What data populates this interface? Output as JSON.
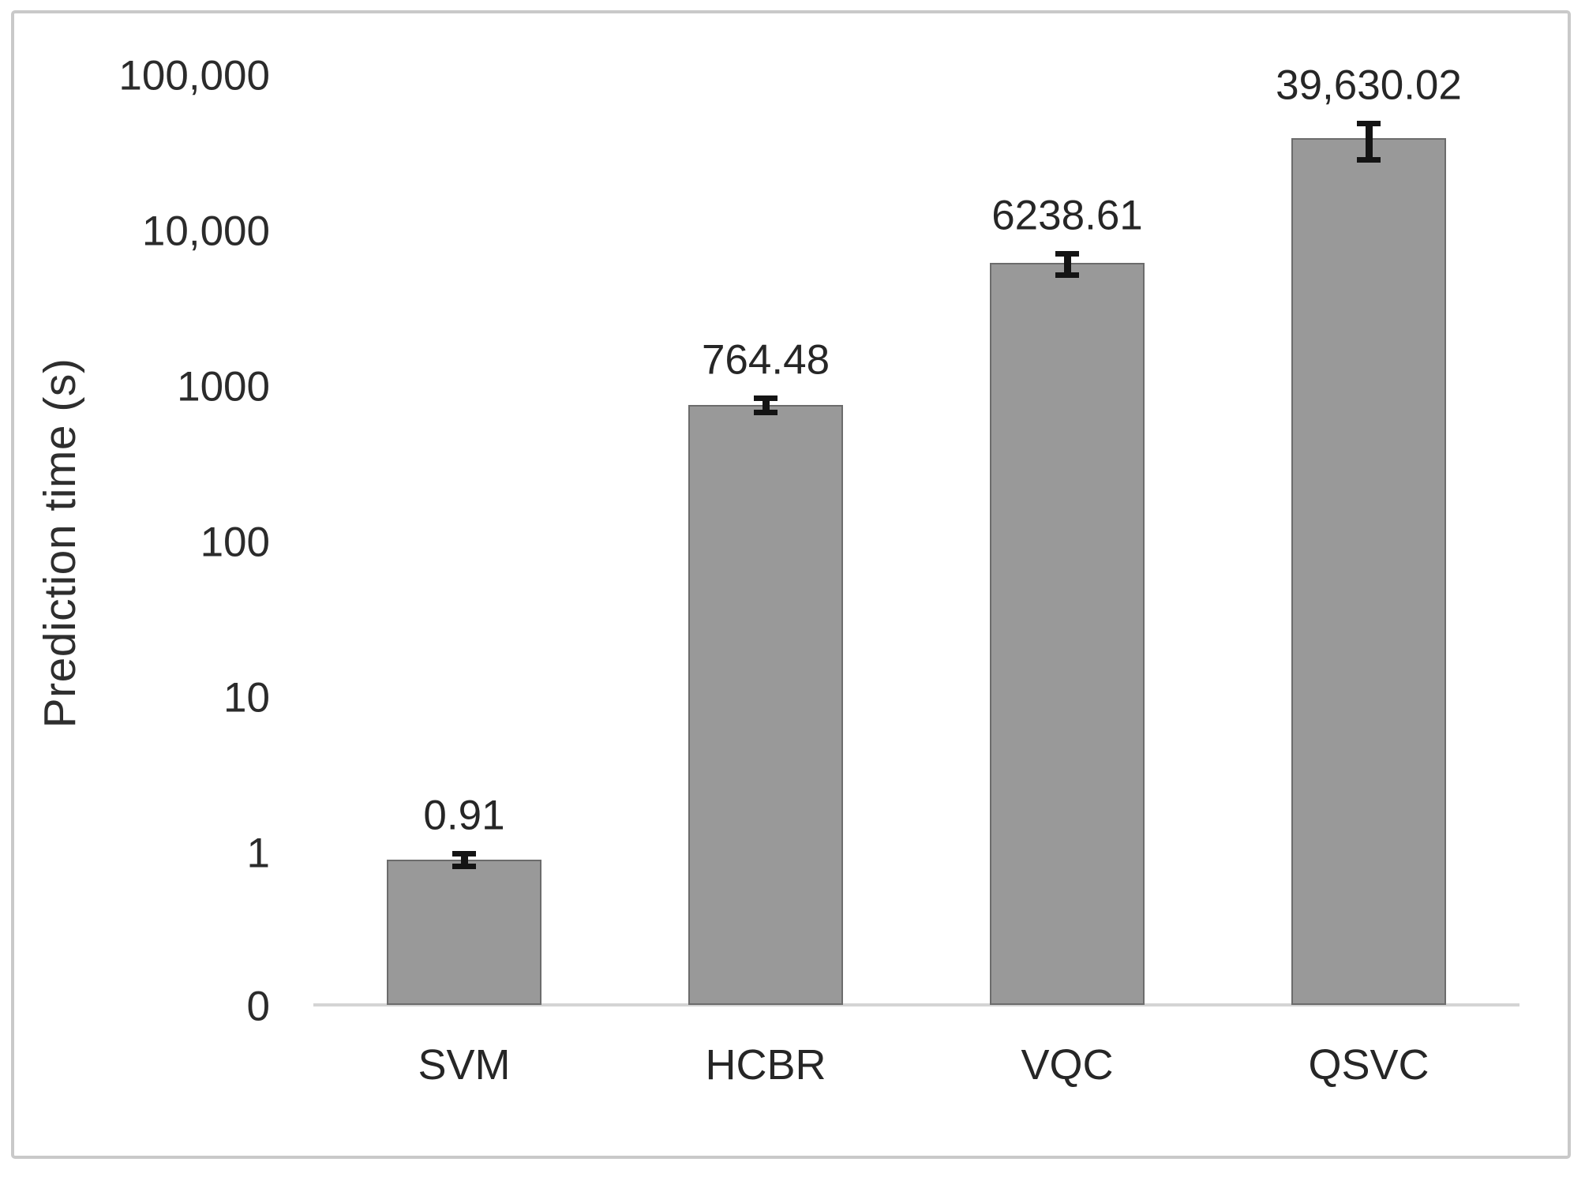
{
  "chart_data": {
    "type": "bar",
    "title": "",
    "xlabel": "",
    "ylabel": "Prediction time (s)",
    "scale_y": "log10",
    "grid": "off",
    "legend": "none",
    "categories": [
      "SVM",
      "HCBR",
      "VQC",
      "QSVC"
    ],
    "values": [
      0.91,
      764.48,
      6238.61,
      39630.02
    ],
    "value_labels": [
      "0.91",
      "764.48",
      "6238.61",
      "39,630.02"
    ],
    "error_values": [
      0.12,
      110,
      1200,
      12000
    ],
    "y_ticks": [
      {
        "label": "100,000",
        "value": 100000
      },
      {
        "label": "10,000",
        "value": 10000
      },
      {
        "label": "1000",
        "value": 1000
      },
      {
        "label": "100",
        "value": 100
      },
      {
        "label": "10",
        "value": 10
      },
      {
        "label": "1",
        "value": 1
      },
      {
        "label": "0",
        "value": 0
      }
    ],
    "colors": {
      "bar_fill": "#999999",
      "bar_border": "#6c6c6c",
      "error_bar": "#141414",
      "axis_line": "#d4d4d4",
      "frame_border": "#c9c9c9",
      "text": "#2b2b2b"
    }
  }
}
